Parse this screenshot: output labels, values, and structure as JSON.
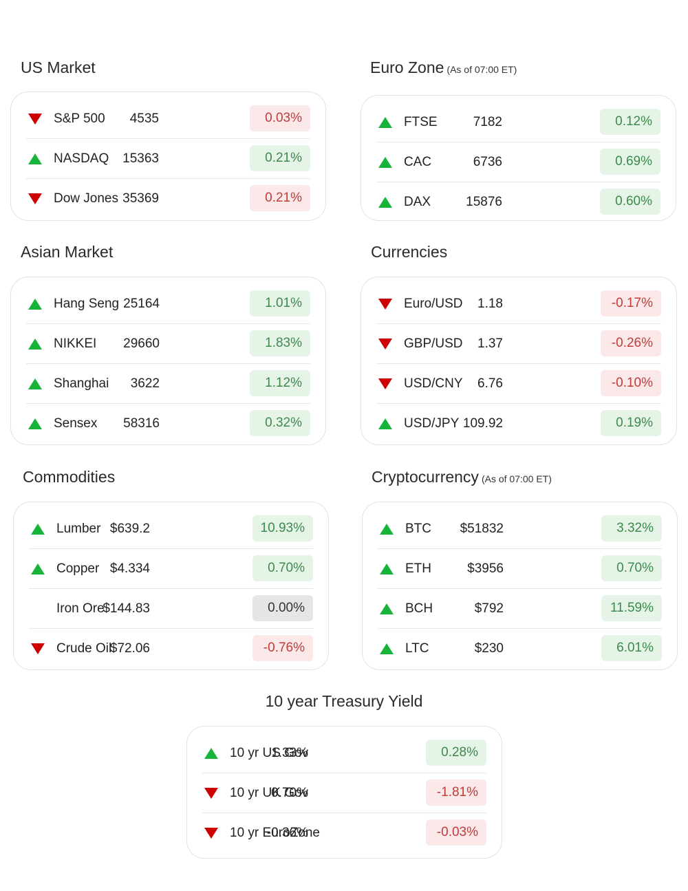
{
  "colors": {
    "up": "#18b43a",
    "down": "#cc0000"
  },
  "us_market": {
    "title": "US Market",
    "rows": [
      {
        "name": "S&P 500",
        "value": "4535",
        "change": "0.03%",
        "dir": "down"
      },
      {
        "name": "NASDAQ",
        "value": "15363",
        "change": "0.21%",
        "dir": "up"
      },
      {
        "name": "Dow Jones",
        "value": "35369",
        "change": "0.21%",
        "dir": "down"
      }
    ]
  },
  "euro_zone": {
    "title": "Euro Zone",
    "subtitle": "(As of 07:00 ET)",
    "rows": [
      {
        "name": "FTSE",
        "value": "7182",
        "change": "0.12%",
        "dir": "up"
      },
      {
        "name": "CAC",
        "value": "6736",
        "change": "0.69%",
        "dir": "up"
      },
      {
        "name": "DAX",
        "value": "15876",
        "change": "0.60%",
        "dir": "up"
      }
    ]
  },
  "asian_market": {
    "title": "Asian Market",
    "rows": [
      {
        "name": "Hang Seng",
        "value": "25164",
        "change": "1.01%",
        "dir": "up"
      },
      {
        "name": "NIKKEI",
        "value": "29660",
        "change": "1.83%",
        "dir": "up"
      },
      {
        "name": "Shanghai",
        "value": "3622",
        "change": "1.12%",
        "dir": "up"
      },
      {
        "name": "Sensex",
        "value": "58316",
        "change": "0.32%",
        "dir": "up"
      }
    ]
  },
  "currencies": {
    "title": "Currencies",
    "rows": [
      {
        "name": "Euro/USD",
        "value": "1.18",
        "change": "-0.17%",
        "dir": "down"
      },
      {
        "name": "GBP/USD",
        "value": "1.37",
        "change": "-0.26%",
        "dir": "down"
      },
      {
        "name": "USD/CNY",
        "value": "6.76",
        "change": "-0.10%",
        "dir": "down"
      },
      {
        "name": "USD/JPY",
        "value": "109.92",
        "change": "0.19%",
        "dir": "up"
      }
    ]
  },
  "commodities": {
    "title": "Commodities",
    "rows": [
      {
        "name": "Lumber",
        "value": "$639.2",
        "change": "10.93%",
        "dir": "up"
      },
      {
        "name": "Copper",
        "value": "$4.334",
        "change": "0.70%",
        "dir": "up"
      },
      {
        "name": "Iron Ore",
        "value": "$144.83",
        "change": "0.00%",
        "dir": "flat"
      },
      {
        "name": "Crude Oil",
        "value": "$72.06",
        "change": "-0.76%",
        "dir": "down"
      }
    ]
  },
  "cryptocurrency": {
    "title": "Cryptocurrency",
    "subtitle": "(As of 07:00 ET)",
    "rows": [
      {
        "name": "BTC",
        "value": "$51832",
        "change": "3.32%",
        "dir": "up"
      },
      {
        "name": "ETH",
        "value": "$3956",
        "change": "0.70%",
        "dir": "up"
      },
      {
        "name": "BCH",
        "value": "$792",
        "change": "11.59%",
        "dir": "up"
      },
      {
        "name": "LTC",
        "value": "$230",
        "change": "6.01%",
        "dir": "up"
      }
    ]
  },
  "treasury": {
    "title": "10 year Treasury Yield",
    "rows": [
      {
        "name": "10 yr US Gov",
        "value": "1.33%",
        "change": "0.28%",
        "dir": "up"
      },
      {
        "name": "10 yr UK Gov",
        "value": "0.70%",
        "change": "-1.81%",
        "dir": "down"
      },
      {
        "name": "10 yr EuroZone",
        "value": "-0.36%",
        "change": "-0.03%",
        "dir": "down"
      }
    ]
  }
}
